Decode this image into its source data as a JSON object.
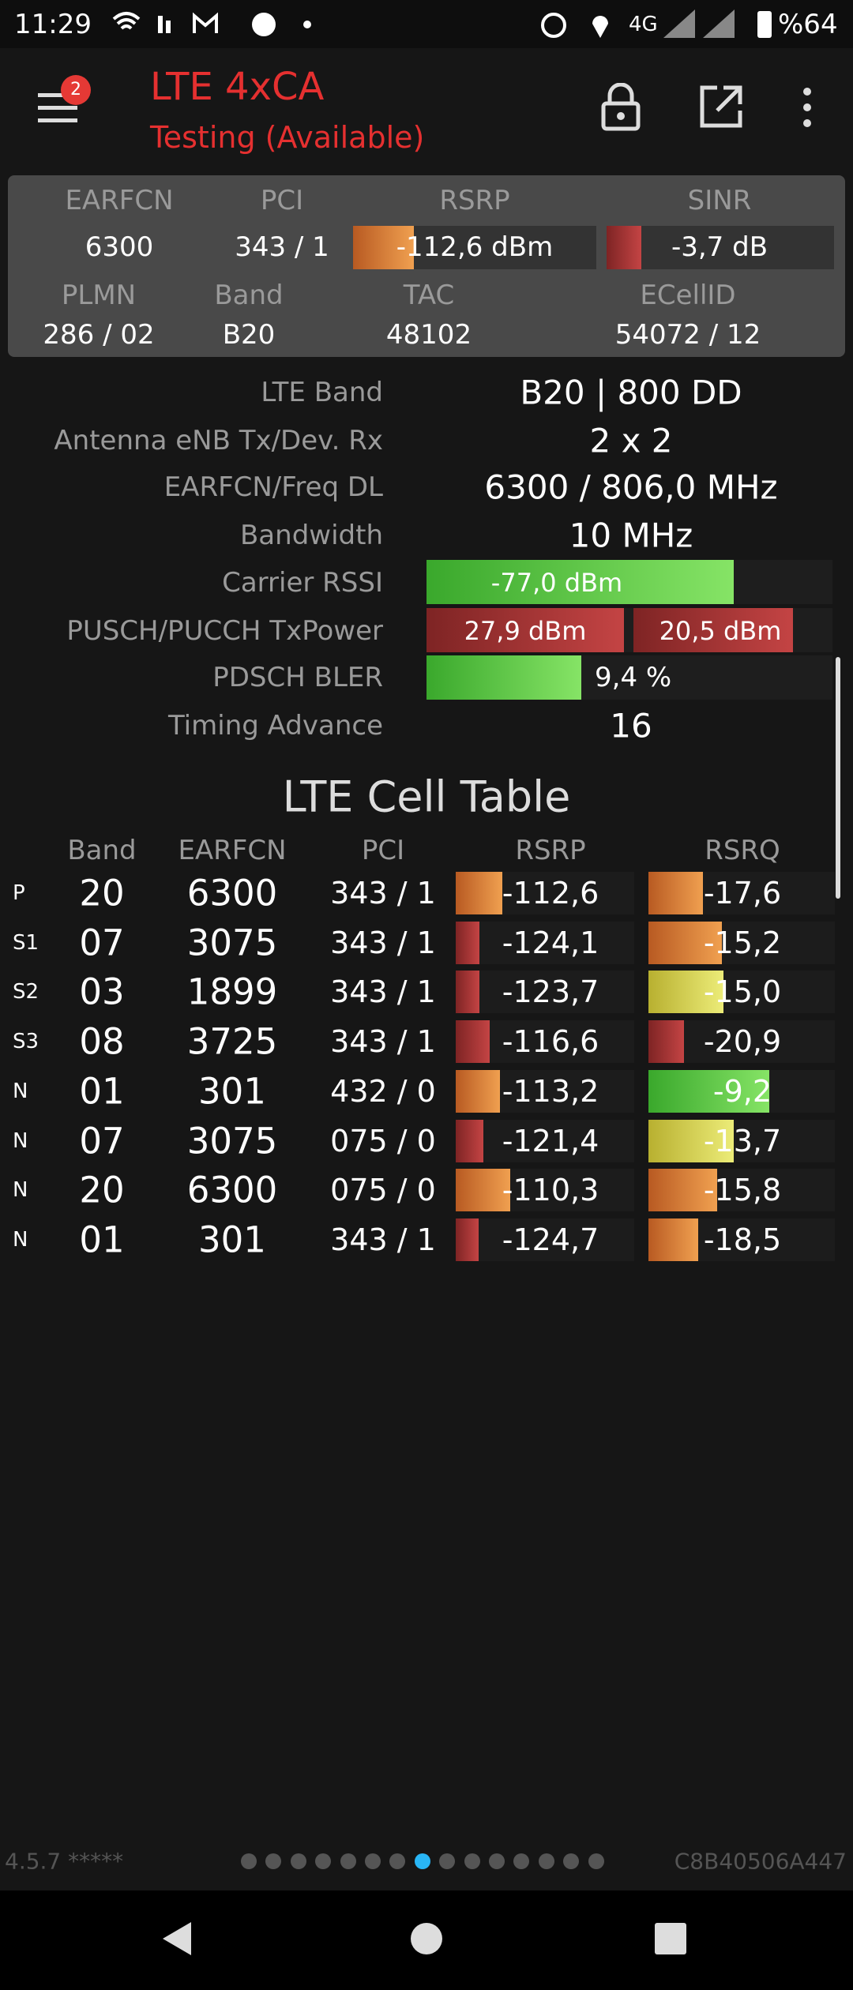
{
  "status_bar": {
    "time": "11:29",
    "network": "4G",
    "battery": "%64"
  },
  "app_bar": {
    "title": "LTE 4xCA",
    "subtitle": "Testing (Available)",
    "badge": "2"
  },
  "summary": {
    "labels": [
      "EARFCN",
      "PCI",
      "RSRP",
      "SINR"
    ],
    "values": [
      "6300",
      "343 / 1",
      "-112,6 dBm",
      "-3,7 dB"
    ],
    "labels2": [
      "PLMN",
      "Band",
      "TAC",
      "ECellID"
    ],
    "values2": [
      "286 / 02",
      "B20",
      "48102",
      "54072 / 12"
    ]
  },
  "info": {
    "rows": [
      [
        "LTE Band",
        "B20 | 800 DD"
      ],
      [
        "Antenna eNB Tx/Dev. Rx",
        "2 x 2"
      ],
      [
        "EARFCN/Freq DL",
        "6300 / 806,0 MHz"
      ],
      [
        "Bandwidth",
        "10 MHz"
      ],
      [
        "Carrier RSSI",
        "-77,0 dBm"
      ],
      [
        "PUSCH/PUCCH TxPower",
        "27,9 dBm",
        "20,5 dBm"
      ],
      [
        "PDSCH BLER",
        "9,4 %"
      ],
      [
        "Timing Advance",
        "16"
      ]
    ]
  },
  "cell_table": {
    "title": "LTE Cell Table",
    "headers": [
      "Band",
      "EARFCN",
      "PCI",
      "RSRP",
      "RSRQ"
    ],
    "rows": [
      [
        "P",
        "20",
        "6300",
        "343 / 1",
        "-112,6",
        "-17,6"
      ],
      [
        "S1",
        "07",
        "3075",
        "343 / 1",
        "-124,1",
        "-15,2"
      ],
      [
        "S2",
        "03",
        "1899",
        "343 / 1",
        "-123,7",
        "-15,0"
      ],
      [
        "S3",
        "08",
        "3725",
        "343 / 1",
        "-116,6",
        "-20,9"
      ],
      [
        "N",
        "01",
        "301",
        "432 / 0",
        "-113,2",
        "-9,2"
      ],
      [
        "N",
        "07",
        "3075",
        "075 / 0",
        "-121,4",
        "-13,7"
      ],
      [
        "N",
        "20",
        "6300",
        "075 / 0",
        "-110,3",
        "-15,8"
      ],
      [
        "N",
        "01",
        "301",
        "343 / 1",
        "-124,7",
        "-18,5"
      ]
    ]
  },
  "footer": {
    "version": "4.5.7 *****",
    "device_id": "C8B40506A447"
  }
}
